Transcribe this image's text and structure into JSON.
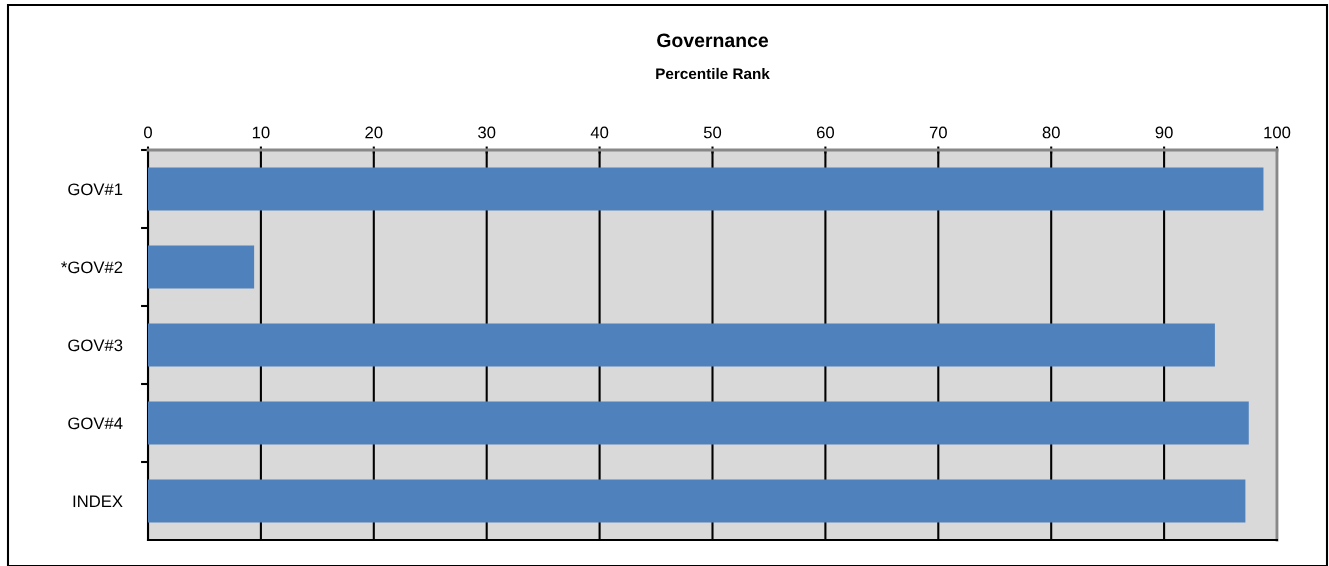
{
  "chart_data": {
    "type": "bar",
    "orientation": "horizontal",
    "title": "Governance",
    "subtitle": "Percentile Rank",
    "categories": [
      "GOV#1",
      "*GOV#2",
      "GOV#3",
      "GOV#4",
      "INDEX"
    ],
    "values": [
      98.8,
      9.4,
      94.5,
      97.5,
      97.2
    ],
    "color": "#4f81bd",
    "xlim": [
      0,
      100
    ],
    "xticks": [
      0,
      10,
      20,
      30,
      40,
      50,
      60,
      70,
      80,
      90,
      100
    ],
    "grid": "x",
    "legend": false
  }
}
